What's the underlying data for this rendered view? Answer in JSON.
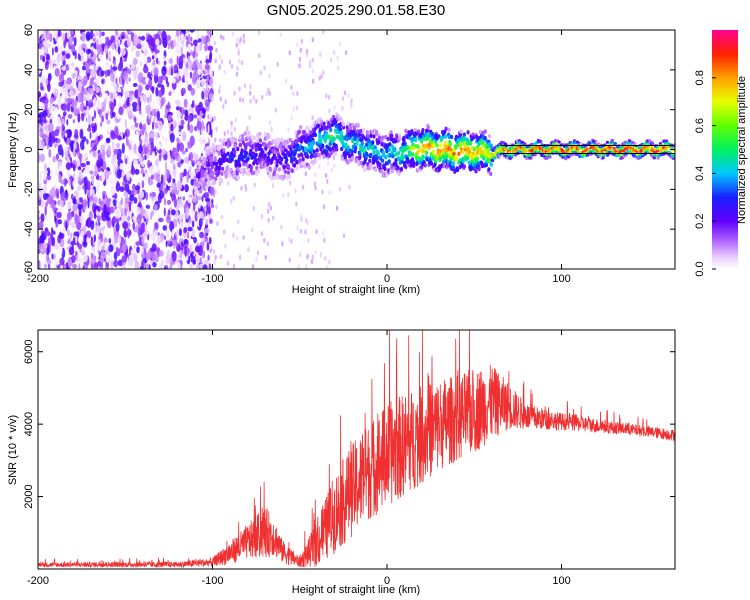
{
  "title": "GN05.2025.290.01.58.E30",
  "chart_data": [
    {
      "type": "heatmap",
      "name": "spectrogram",
      "xlabel": "Height of straight line (km)",
      "ylabel": "Frequency (Hz)",
      "xlim": [
        -200,
        165
      ],
      "ylim": [
        -60,
        60
      ],
      "xticks": [
        -200,
        -100,
        0,
        100
      ],
      "yticks": [
        -60,
        -40,
        -20,
        0,
        20,
        40,
        60
      ],
      "colorbar": {
        "label": "Normalized spectral amplitude",
        "range": [
          0,
          1
        ],
        "ticks": [
          0.0,
          0.2,
          0.4,
          0.6,
          0.8
        ],
        "tick_labels": [
          "0.0",
          "0.2",
          "0.4",
          "0.6",
          "0.8"
        ]
      },
      "noise_region_x": [
        -200,
        -100
      ],
      "signal_track": {
        "x": [
          -110,
          -100,
          -90,
          -80,
          -70,
          -60,
          -50,
          -40,
          -30,
          -20,
          -10,
          0,
          10,
          20,
          30,
          40,
          50,
          60,
          70,
          80,
          90,
          100,
          110,
          120,
          130,
          140,
          150,
          160,
          165
        ],
        "freq": [
          -14,
          -8,
          -4,
          -3,
          -2,
          -6,
          0,
          4,
          7,
          3,
          0,
          -3,
          -1,
          1,
          0,
          -1,
          -1,
          -2,
          0,
          0,
          0,
          0,
          0,
          0,
          0,
          0,
          0,
          0,
          0
        ],
        "amplitude": [
          0.15,
          0.2,
          0.3,
          0.3,
          0.25,
          0.25,
          0.35,
          0.45,
          0.55,
          0.45,
          0.45,
          0.45,
          0.55,
          0.8,
          0.85,
          0.85,
          0.8,
          0.75,
          0.9,
          0.95,
          0.95,
          0.95,
          0.95,
          0.95,
          0.95,
          0.95,
          0.95,
          0.95,
          0.95
        ]
      },
      "reference_lines_hz": [
        -2,
        2
      ]
    },
    {
      "type": "line",
      "name": "snr",
      "color": "#f03030",
      "xlabel": "Height of straight line (km)",
      "ylabel": "SNR (10 * v/v)",
      "xlim": [
        -200,
        165
      ],
      "ylim": [
        0,
        6600
      ],
      "xticks": [
        -200,
        -100,
        0,
        100
      ],
      "yticks": [
        2000,
        4000,
        6000
      ],
      "envelope": {
        "x": [
          -200,
          -120,
          -100,
          -90,
          -80,
          -70,
          -65,
          -60,
          -55,
          -50,
          -40,
          -30,
          -20,
          -10,
          0,
          10,
          20,
          30,
          40,
          50,
          60,
          70,
          80,
          100,
          120,
          140,
          165
        ],
        "base": [
          100,
          100,
          150,
          350,
          600,
          800,
          750,
          400,
          250,
          150,
          500,
          1200,
          1800,
          2300,
          2700,
          3000,
          3300,
          3600,
          3800,
          4000,
          4300,
          4300,
          4100,
          4000,
          3900,
          3800,
          3650
        ],
        "amp": [
          80,
          100,
          150,
          400,
          600,
          900,
          700,
          400,
          300,
          200,
          800,
          1400,
          1600,
          1700,
          1800,
          1800,
          1700,
          1600,
          1500,
          1500,
          1300,
          800,
          450,
          300,
          250,
          200,
          200
        ]
      }
    }
  ]
}
